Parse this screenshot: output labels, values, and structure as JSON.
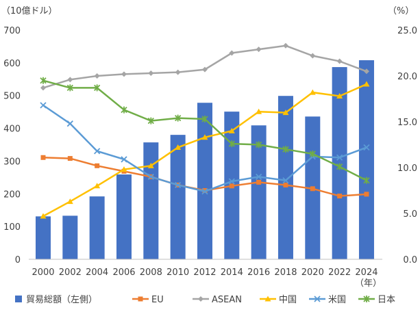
{
  "chart_data": {
    "type": "bar+line",
    "left_axis_unit": "（10億ドル）",
    "right_axis_unit": "（%）",
    "x_unit": "（年）",
    "categories": [
      "2000",
      "2002",
      "2004",
      "2006",
      "2008",
      "2010",
      "2012",
      "2014",
      "2016",
      "2018",
      "2020",
      "2022",
      "2024"
    ],
    "left_ylim": [
      0,
      700
    ],
    "left_ticks": [
      "0",
      "100",
      "200",
      "300",
      "400",
      "500",
      "600",
      "700"
    ],
    "right_ylim": [
      0,
      25
    ],
    "right_ticks": [
      "0.0",
      "5.0",
      "10.0",
      "15.0",
      "20.0",
      "25.0"
    ],
    "grid": false,
    "legend_position": "bottom",
    "bars": {
      "name": "貿易総額（左側）",
      "color": "#4472C4",
      "values": [
        131,
        133,
        192,
        259,
        357,
        380,
        478,
        451,
        409,
        499,
        436,
        587,
        608
      ]
    },
    "series": [
      {
        "name": "EU",
        "color": "#ED7D31",
        "marker": "square",
        "values": [
          11.1,
          11.0,
          10.2,
          9.6,
          9.0,
          8.1,
          7.5,
          8.0,
          8.4,
          8.1,
          7.7,
          6.9,
          7.1
        ]
      },
      {
        "name": "ASEAN",
        "color": "#A5A5A5",
        "marker": "diamond",
        "values": [
          18.7,
          19.6,
          20.0,
          20.2,
          20.3,
          20.4,
          20.7,
          22.5,
          22.9,
          23.3,
          22.2,
          21.6,
          20.5
        ]
      },
      {
        "name": "中国",
        "color": "#FFC000",
        "marker": "triangle",
        "values": [
          4.7,
          6.3,
          8.0,
          9.8,
          10.2,
          12.2,
          13.3,
          14.0,
          16.1,
          16.0,
          18.2,
          17.8,
          19.1
        ]
      },
      {
        "name": "米国",
        "color": "#5B9BD5",
        "marker": "x",
        "values": [
          16.8,
          14.8,
          11.8,
          10.9,
          9.0,
          8.1,
          7.4,
          8.5,
          9.0,
          8.6,
          11.2,
          11.1,
          12.2
        ]
      },
      {
        "name": "日本",
        "color": "#70AD47",
        "marker": "star",
        "values": [
          19.5,
          18.7,
          18.7,
          16.3,
          15.1,
          15.4,
          15.3,
          12.6,
          12.5,
          12.0,
          11.5,
          10.1,
          8.6
        ]
      }
    ]
  }
}
